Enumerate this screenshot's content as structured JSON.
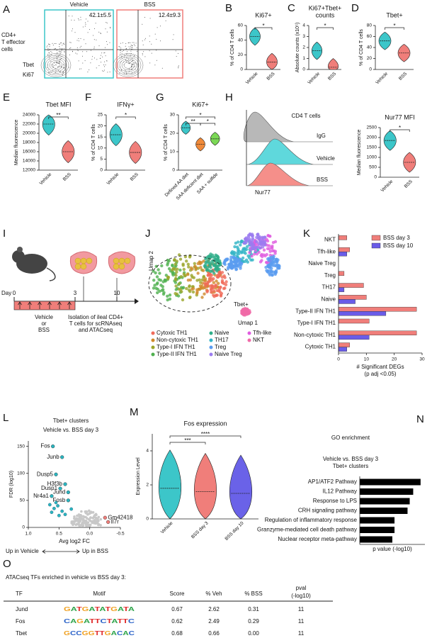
{
  "panels": {
    "A": {
      "letter": "A",
      "conditions": [
        "Vehicle",
        "BSS"
      ],
      "quadrant_values": [
        "42.1±5.5",
        "12.4±9.3"
      ],
      "population": [
        "CD4+",
        "T effector",
        "cells"
      ],
      "ylabel": "Tbet",
      "xlabel": "Ki67",
      "colors": [
        "#3cc6c9",
        "#f07e7a"
      ]
    },
    "B": {
      "letter": "B",
      "title": [
        "Ki67+"
      ],
      "ylabel": "% of CD4 T cells",
      "categories": [
        "Vehicle",
        "BSS"
      ],
      "values": [
        45,
        10
      ],
      "colors": [
        "#3cc6c9",
        "#f07e7a"
      ],
      "ylim": [
        0,
        60
      ],
      "yticks": [
        0,
        20,
        40,
        60
      ],
      "significance": [
        "*"
      ]
    },
    "C": {
      "letter": "C",
      "title": [
        "Ki67+Tbet+",
        "counts"
      ],
      "ylabel": "Absolute counts (x10⁵)",
      "categories": [
        "Vehicle",
        "BSS"
      ],
      "values": [
        1.7,
        0.2
      ],
      "colors": [
        "#3cc6c9",
        "#f07e7a"
      ],
      "ylim": [
        0,
        4
      ],
      "yticks": [
        0,
        1,
        2,
        3,
        4
      ],
      "significance": [
        "*"
      ]
    },
    "D": {
      "letter": "D",
      "title": [
        "Tbet+"
      ],
      "ylabel": "% of CD4 T cells",
      "categories": [
        "Vehicle",
        "BSS"
      ],
      "values": [
        52,
        30
      ],
      "colors": [
        "#3cc6c9",
        "#f07e7a"
      ],
      "ylim": [
        0,
        80
      ],
      "yticks": [
        0,
        20,
        40,
        60,
        80
      ],
      "significance": [
        "*"
      ]
    },
    "E": {
      "letter": "E",
      "title": [
        "Tbet MFI"
      ],
      "ylabel": "Median fluorescence",
      "categories": [
        "Vehicle",
        "BSS"
      ],
      "values": [
        22000,
        16000
      ],
      "colors": [
        "#3cc6c9",
        "#f07e7a"
      ],
      "ylim": [
        12000,
        24000
      ],
      "yticks": [
        12000,
        14000,
        16000,
        18000,
        20000,
        22000,
        24000
      ],
      "significance": [
        "**"
      ]
    },
    "F": {
      "letter": "F",
      "title": [
        "IFNγ+"
      ],
      "ylabel": "% of CD4 T cells",
      "categories": [
        "Vehicle",
        "BSS"
      ],
      "values": [
        16,
        8
      ],
      "colors": [
        "#3cc6c9",
        "#f07e7a"
      ],
      "ylim": [
        0,
        25
      ],
      "yticks": [
        0,
        5,
        10,
        15,
        20,
        25
      ],
      "significance": [
        "*"
      ]
    },
    "G": {
      "letter": "G",
      "title": [
        "Ki67+"
      ],
      "ylabel": "% of CD4 T cells",
      "categories": [
        "Defined AA diet",
        "SAA deficient diet",
        "SAA + sulfide"
      ],
      "values": [
        23,
        14,
        17
      ],
      "colors": [
        "#3cc6c9",
        "#f08a3a",
        "#7bd855"
      ],
      "ylim": [
        0,
        30
      ],
      "yticks": [
        0,
        10,
        20,
        30
      ],
      "significance": [
        "*",
        "**",
        "*"
      ]
    },
    "H": {
      "letter": "H",
      "histogram": {
        "title": "CD4 T cells",
        "tracks": [
          "IgG",
          "Vehicle",
          "BSS"
        ],
        "colors": [
          "#b8b8b8",
          "#5fd8dc",
          "#f58f8a"
        ],
        "xlabel": "Nur77"
      },
      "title": [
        "Nur77 MFI"
      ],
      "ylabel": "Median fluorescence",
      "categories": [
        "Vehicle",
        "BSS"
      ],
      "values": [
        1850,
        750
      ],
      "colors": [
        "#3cc6c9",
        "#f07e7a"
      ],
      "ylim": [
        0,
        2500
      ],
      "yticks": [
        0,
        500,
        1000,
        1500,
        2000,
        2500
      ],
      "significance": [
        "*"
      ]
    },
    "I": {
      "letter": "I",
      "day_label": "Day",
      "days": [
        "0",
        "3",
        "10"
      ],
      "treatment": [
        "Vehicle",
        "or",
        "BSS"
      ],
      "isolation": [
        "Isolation of ileal CD4+",
        "T cells for scRNAseq",
        "and ATACseq"
      ]
    },
    "J": {
      "letter": "J",
      "ylabel": "Umap 2",
      "xlabel": "Umap 1",
      "annotation": "Tbet+",
      "clusters": [
        {
          "name": "Cytoxic TH1",
          "color": "#f06b5a"
        },
        {
          "name": "Non-cytoxic TH1",
          "color": "#d0892a"
        },
        {
          "name": "Type-I IFN TH1",
          "color": "#9aa52a"
        },
        {
          "name": "Type-II IFN TH1",
          "color": "#4fb04f"
        },
        {
          "name": "Naive",
          "color": "#2fae8a"
        },
        {
          "name": "TH17",
          "color": "#32b4c6"
        },
        {
          "name": "Treg",
          "color": "#5a9cf0"
        },
        {
          "name": "Naive Treg",
          "color": "#9b7cf0"
        },
        {
          "name": "Tfh-like",
          "color": "#e05ce0"
        },
        {
          "name": "NKT",
          "color": "#f06aa8"
        }
      ]
    },
    "K": {
      "letter": "K",
      "categories": [
        "NKT",
        "Tfh-like",
        "Naive Treg",
        "Treg",
        "TH17",
        "Naive",
        "Type-II IFN TH1",
        "Type-I IFN TH1",
        "Non-cytoxic TH1",
        "Cytoxic TH1"
      ],
      "series": [
        {
          "name": "BSS day 3",
          "color": "#f07e7a",
          "values": [
            3,
            4,
            0,
            2,
            9,
            10,
            28,
            11,
            28,
            4
          ]
        },
        {
          "name": "BSS day 10",
          "color": "#6a5ce8",
          "values": [
            0,
            3,
            0,
            0,
            2,
            6,
            17,
            0,
            11,
            3
          ]
        }
      ],
      "xlim": [
        0,
        30
      ],
      "xticks": [
        0,
        10,
        20,
        30
      ],
      "xlabel": [
        "# Significant DEGs",
        "(p adj <0.05)"
      ]
    },
    "L": {
      "letter": "L",
      "title": "Tbet+ clusters",
      "subtitle": "Vehicle vs. BSS day 3",
      "ylabel": "FDR (log10)",
      "xlabel": "Avg log2 FC",
      "xlim": [
        1.0,
        -0.5
      ],
      "xticks": [
        {
          "value": 1,
          "label": "1.0"
        },
        {
          "value": 0.5,
          "label": "0.5"
        },
        {
          "value": 0,
          "label": "0.0"
        },
        -0.5
      ],
      "ylim": [
        0,
        160
      ],
      "yticks": [
        0,
        50,
        100,
        150
      ],
      "genes": [
        {
          "label": "Fos",
          "x": 0.6,
          "y": 150,
          "color": "#2bb5c0"
        },
        {
          "label": "Junb",
          "x": 0.45,
          "y": 130,
          "color": "#2bb5c0"
        },
        {
          "label": "Dusp5",
          "x": 0.55,
          "y": 98,
          "color": "#2bb5c0"
        },
        {
          "label": "H3f3b",
          "x": 0.4,
          "y": 80,
          "color": "#2bb5c0"
        },
        {
          "label": "Dusp1",
          "x": 0.48,
          "y": 72,
          "color": "#2bb5c0"
        },
        {
          "label": "Jund",
          "x": 0.35,
          "y": 65,
          "color": "#2bb5c0"
        },
        {
          "label": "Nr4a1",
          "x": 0.62,
          "y": 58,
          "color": "#2bb5c0"
        },
        {
          "label": "Fosb",
          "x": 0.35,
          "y": 50,
          "color": "#2bb5c0"
        },
        {
          "label": "Gm42418",
          "x": -0.25,
          "y": 18,
          "color": "#f07e7a"
        },
        {
          "label": "Il7r",
          "x": -0.3,
          "y": 10,
          "color": "#f07e7a"
        }
      ],
      "direction": [
        "Up in Vehicle",
        "Up in BSS"
      ]
    },
    "M": {
      "letter": "M",
      "title": [
        "Fos expression"
      ],
      "ylabel": "Expression Level",
      "categories": [
        "Vehicle",
        "BSS day 3",
        "BSS day 10"
      ],
      "values": [
        1.8,
        1.6,
        1.5
      ],
      "colors": [
        "#3cc6c9",
        "#f07e7a",
        "#6a62e8"
      ],
      "ylim": [
        0,
        5
      ],
      "yticks": [
        0,
        2,
        4
      ],
      "significance": [
        "****",
        "***"
      ]
    },
    "N": {
      "letter": "N",
      "title": "GO enrichment",
      "subtitle": [
        "Vehicle vs. BSS day 3",
        "Tbet+ clusters"
      ],
      "categories": [
        "AP1/ATF2 Pathway",
        "IL12 Pathway",
        "Response to LPS",
        "CRH signaling pathway",
        "Regulation of inflammatory response",
        "Granzyme-mediated cell death pathway",
        "Nuclear receptor meta-pathway"
      ],
      "values": [
        14,
        12.3,
        11.5,
        11,
        8,
        8,
        7.5
      ],
      "xlim": [
        0,
        15
      ],
      "xlabel": "p value (-log10)"
    },
    "O": {
      "letter": "O",
      "title": "ATACseq TFs enriched in vehicle vs BSS day 3:",
      "header": [
        [
          "TF"
        ],
        [
          "Motif"
        ],
        [
          "Score"
        ],
        [
          "% Veh"
        ],
        [
          "% BSS"
        ],
        [
          "pval",
          "(-log10)"
        ]
      ],
      "rows": [
        [
          "Jund",
          "GATGATATGATA",
          "0.67",
          "2.62",
          "0.31",
          "11"
        ],
        [
          "Fos",
          "CAGATTCTATTC",
          "0.62",
          "2.49",
          "0.29",
          "11"
        ],
        [
          "Tbet",
          "GCCGGTTGACAC",
          "0.68",
          "0.66",
          "0.00",
          "11"
        ]
      ]
    }
  }
}
